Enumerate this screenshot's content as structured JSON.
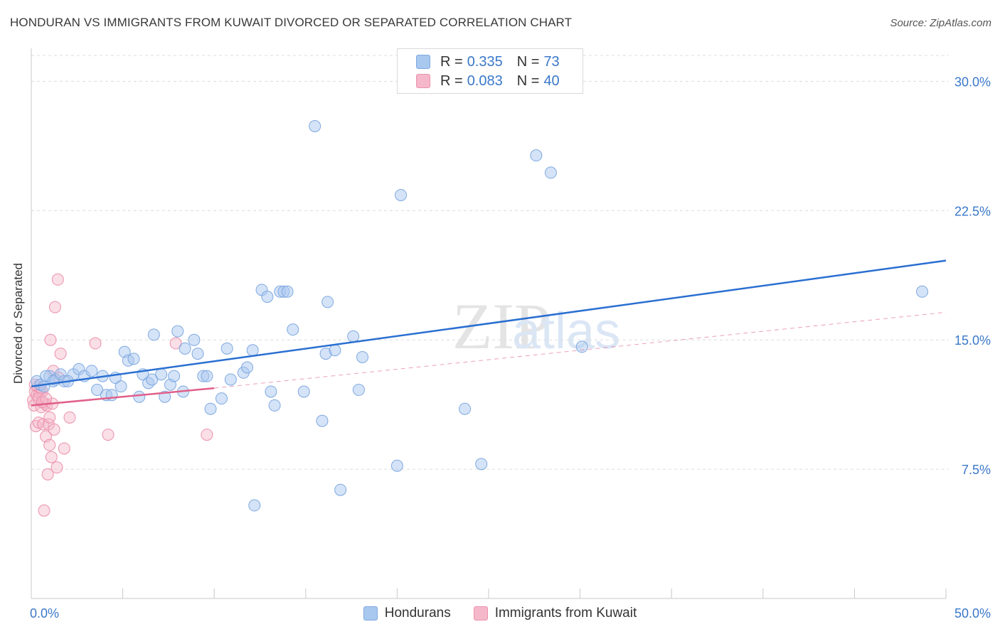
{
  "title": "HONDURAN VS IMMIGRANTS FROM KUWAIT DIVORCED OR SEPARATED CORRELATION CHART",
  "source": "Source: ZipAtlas.com",
  "watermark": {
    "zip": "ZIP",
    "atlas": "atlas"
  },
  "legend_top": [
    {
      "r_label": "R =",
      "r_value": "0.335",
      "n_label": "N =",
      "n_value": "73"
    },
    {
      "r_label": "R =",
      "r_value": "0.083",
      "n_label": "N =",
      "n_value": "40"
    }
  ],
  "legend_bottom": [
    "Hondurans",
    "Immigrants from Kuwait"
  ],
  "colors": {
    "blue_fill": "#a9c8ef",
    "blue_stroke": "#7fa9e0",
    "blue_line": "#2a6fd1",
    "pink_fill": "#f5b8ca",
    "pink_stroke": "#ec90ac",
    "pink_line": "#e0608a",
    "tick_text": "#3a78c9",
    "grid": "#dcdcdc"
  },
  "chart_data": {
    "type": "scatter",
    "xlabel": "",
    "ylabel": "Divorced or Separated",
    "xlim": [
      0,
      50
    ],
    "ylim": [
      0,
      31.5
    ],
    "x_tick_labels": [
      {
        "value": 0,
        "label": "0.0%"
      },
      {
        "value": 50,
        "label": "50.0%"
      }
    ],
    "y_tick_labels": [
      {
        "value": 7.5,
        "label": "7.5%"
      },
      {
        "value": 15,
        "label": "15.0%"
      },
      {
        "value": 22.5,
        "label": "22.5%"
      },
      {
        "value": 30,
        "label": "30.0%"
      }
    ],
    "grid": "horizontal dashed",
    "series": [
      {
        "name": "Hondurans",
        "points": [
          [
            0.3,
            12.6
          ],
          [
            0.5,
            12.4
          ],
          [
            0.7,
            12.3
          ],
          [
            1.0,
            12.9
          ],
          [
            1.3,
            12.7
          ],
          [
            1.6,
            13.0
          ],
          [
            1.8,
            12.6
          ],
          [
            2.3,
            13.0
          ],
          [
            2.6,
            13.3
          ],
          [
            2.9,
            12.9
          ],
          [
            3.3,
            13.2
          ],
          [
            3.6,
            12.1
          ],
          [
            3.9,
            12.9
          ],
          [
            4.1,
            11.8
          ],
          [
            4.4,
            11.8
          ],
          [
            4.6,
            12.8
          ],
          [
            4.9,
            12.3
          ],
          [
            5.1,
            14.3
          ],
          [
            5.3,
            13.8
          ],
          [
            5.6,
            13.9
          ],
          [
            5.9,
            11.7
          ],
          [
            6.1,
            13.0
          ],
          [
            6.4,
            12.5
          ],
          [
            6.6,
            12.7
          ],
          [
            6.7,
            15.3
          ],
          [
            7.1,
            13.0
          ],
          [
            7.3,
            11.7
          ],
          [
            7.6,
            12.4
          ],
          [
            7.8,
            12.9
          ],
          [
            8.0,
            15.5
          ],
          [
            8.3,
            12.0
          ],
          [
            8.4,
            14.5
          ],
          [
            8.9,
            15.0
          ],
          [
            9.1,
            14.2
          ],
          [
            9.4,
            12.9
          ],
          [
            9.6,
            12.9
          ],
          [
            9.8,
            11.0
          ],
          [
            10.4,
            11.6
          ],
          [
            10.7,
            14.5
          ],
          [
            10.9,
            12.7
          ],
          [
            11.6,
            13.1
          ],
          [
            11.8,
            13.4
          ],
          [
            12.1,
            14.4
          ],
          [
            12.2,
            5.4
          ],
          [
            12.6,
            17.9
          ],
          [
            12.9,
            17.5
          ],
          [
            13.1,
            12.0
          ],
          [
            13.3,
            11.2
          ],
          [
            13.6,
            17.8
          ],
          [
            13.8,
            17.8
          ],
          [
            14.0,
            17.8
          ],
          [
            14.3,
            15.6
          ],
          [
            14.9,
            12.0
          ],
          [
            15.5,
            27.4
          ],
          [
            15.9,
            10.3
          ],
          [
            16.1,
            14.2
          ],
          [
            16.2,
            17.2
          ],
          [
            16.6,
            14.4
          ],
          [
            16.9,
            6.3
          ],
          [
            17.6,
            15.2
          ],
          [
            17.9,
            12.1
          ],
          [
            18.1,
            14.0
          ],
          [
            20.2,
            23.4
          ],
          [
            20.0,
            7.7
          ],
          [
            23.7,
            11.0
          ],
          [
            24.6,
            7.8
          ],
          [
            27.6,
            25.7
          ],
          [
            28.4,
            24.7
          ],
          [
            30.1,
            14.6
          ],
          [
            48.7,
            17.8
          ],
          [
            0.8,
            12.9
          ],
          [
            1.2,
            12.6
          ],
          [
            2.0,
            12.6
          ]
        ]
      },
      {
        "name": "Immigrants from Kuwait",
        "points": [
          [
            0.1,
            11.5
          ],
          [
            0.15,
            11.2
          ],
          [
            0.2,
            12.0
          ],
          [
            0.25,
            10.0
          ],
          [
            0.3,
            11.8
          ],
          [
            0.35,
            12.3
          ],
          [
            0.4,
            10.2
          ],
          [
            0.45,
            11.9
          ],
          [
            0.5,
            12.2
          ],
          [
            0.55,
            11.1
          ],
          [
            0.6,
            12.0
          ],
          [
            0.65,
            10.1
          ],
          [
            0.7,
            5.1
          ],
          [
            0.75,
            11.3
          ],
          [
            0.8,
            9.4
          ],
          [
            0.85,
            11.2
          ],
          [
            0.9,
            7.2
          ],
          [
            0.95,
            10.1
          ],
          [
            1.0,
            10.5
          ],
          [
            1.0,
            8.9
          ],
          [
            1.05,
            15.0
          ],
          [
            1.1,
            8.2
          ],
          [
            1.15,
            11.3
          ],
          [
            1.2,
            13.2
          ],
          [
            1.25,
            9.8
          ],
          [
            1.3,
            16.9
          ],
          [
            1.4,
            7.6
          ],
          [
            1.45,
            18.5
          ],
          [
            1.5,
            12.8
          ],
          [
            1.6,
            14.2
          ],
          [
            1.8,
            8.7
          ],
          [
            2.1,
            10.5
          ],
          [
            3.5,
            14.8
          ],
          [
            4.2,
            9.5
          ],
          [
            7.9,
            14.8
          ],
          [
            9.6,
            9.5
          ],
          [
            0.2,
            12.4
          ],
          [
            0.4,
            11.6
          ],
          [
            0.6,
            11.4
          ],
          [
            0.8,
            11.6
          ]
        ]
      }
    ],
    "trend_lines": [
      {
        "series": "Hondurans",
        "x": [
          0,
          50
        ],
        "y": [
          12.3,
          19.6
        ],
        "style": "solid"
      },
      {
        "series": "Immigrants from Kuwait",
        "x": [
          0,
          10
        ],
        "y": [
          11.2,
          12.2
        ],
        "style": "solid"
      },
      {
        "series": "Immigrants from Kuwait",
        "x": [
          10,
          50
        ],
        "y": [
          12.2,
          16.6
        ],
        "style": "dashed"
      }
    ]
  }
}
